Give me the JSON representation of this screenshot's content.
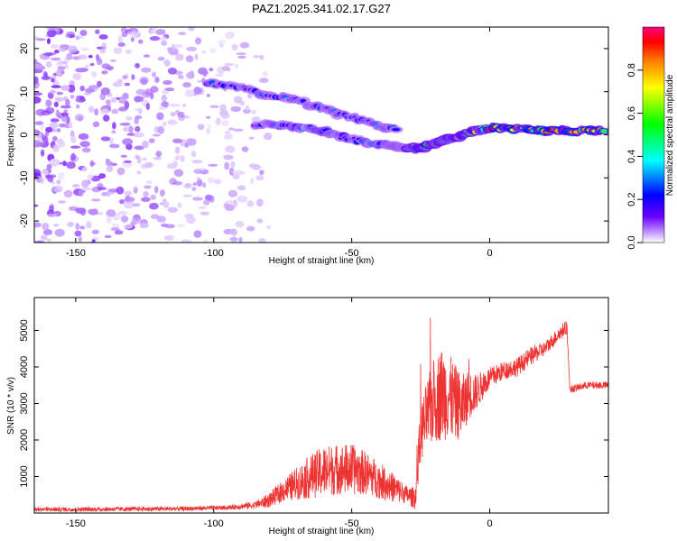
{
  "page_title": "PAZ1.2025.341.02.17.G27",
  "chart_data": [
    {
      "type": "heatmap",
      "xlabel": "Height of straight line (km)",
      "ylabel": "Frequency (Hz)",
      "xlim": [
        -165,
        43
      ],
      "ylim": [
        -25,
        25
      ],
      "xticks": [
        -150,
        -100,
        -50,
        0
      ],
      "yticks": [
        -20,
        -10,
        0,
        10,
        20
      ],
      "colorbar": {
        "label": "Normalized spectral amplitude",
        "range": [
          0,
          1
        ],
        "ticks": [
          "0.0",
          "0.2",
          "0.4",
          "0.6",
          "0.8"
        ],
        "tick_values": [
          0.0,
          0.2,
          0.4,
          0.6,
          0.8
        ],
        "colors": [
          "#ffffff",
          "#b27cff",
          "#6a00ff",
          "#0000ff",
          "#00ffff",
          "#00ff00",
          "#ffff00",
          "#ff8000",
          "#ff0000",
          "#ff0080"
        ]
      },
      "ridge_upper": {
        "x": [
          -102,
          -90,
          -80,
          -70,
          -60,
          -50,
          -40,
          -33
        ],
        "y": [
          12,
          11,
          9,
          8,
          6,
          4,
          2,
          1
        ]
      },
      "ridge_lower": {
        "x": [
          -85,
          -75,
          -65,
          -58,
          -50,
          -42,
          -35,
          -30,
          -25,
          -20,
          -15,
          -10,
          -5,
          0,
          10,
          20,
          30,
          43
        ],
        "y": [
          2.5,
          2,
          1.5,
          0.5,
          -1,
          -2,
          -2.5,
          -3,
          -3,
          -2,
          -1,
          0,
          1,
          1.5,
          1.5,
          1,
          1,
          1
        ]
      }
    },
    {
      "type": "line",
      "xlabel": "Height of straight line (km)",
      "ylabel": "SNR (10 * v/v)",
      "xlim": [
        -165,
        43
      ],
      "ylim": [
        0,
        5900
      ],
      "xticks": [
        -150,
        -100,
        -50,
        0
      ],
      "yticks": [
        1000,
        2000,
        3000,
        4000,
        5000
      ],
      "series": [
        {
          "name": "SNR",
          "color": "#ee3333",
          "x": [
            -165,
            -150,
            -130,
            -110,
            -95,
            -85,
            -80,
            -75,
            -70,
            -65,
            -60,
            -55,
            -50,
            -45,
            -40,
            -35,
            -30,
            -27,
            -25,
            -22,
            -20,
            -17,
            -15,
            -12,
            -10,
            -8,
            -5,
            0,
            5,
            10,
            15,
            20,
            25,
            28,
            29,
            30,
            35,
            40,
            43
          ],
          "values": [
            100,
            100,
            110,
            120,
            150,
            220,
            350,
            600,
            800,
            1000,
            1150,
            1200,
            1200,
            1100,
            900,
            700,
            500,
            400,
            2200,
            2800,
            3100,
            3300,
            3200,
            3000,
            2900,
            3200,
            3300,
            3700,
            3900,
            4000,
            4300,
            4500,
            4900,
            5100,
            3400,
            3400,
            3500,
            3500,
            3500
          ],
          "amplitude": [
            60,
            60,
            60,
            60,
            60,
            100,
            200,
            300,
            450,
            600,
            700,
            700,
            700,
            600,
            500,
            400,
            250,
            300,
            800,
            1000,
            1200,
            1300,
            1200,
            1000,
            900,
            700,
            500,
            300,
            250,
            250,
            250,
            200,
            200,
            200,
            100,
            100,
            100,
            100,
            100
          ]
        }
      ]
    }
  ]
}
